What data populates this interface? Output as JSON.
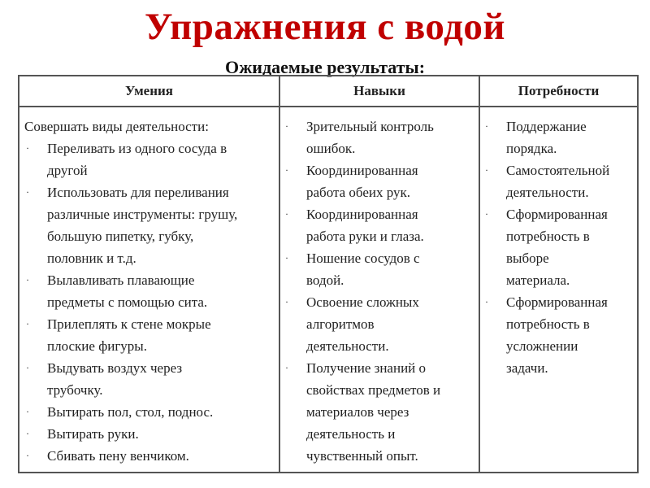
{
  "title": "Упражнения с водой",
  "subtitle": "Ожидаемые результаты:",
  "table": {
    "headers": [
      "Умения",
      "Навыки",
      "Потребности"
    ],
    "bullet": "·",
    "columns": [
      {
        "intro": "Совершать виды деятельности:",
        "items": [
          [
            "Переливать из одного сосуда в",
            "другой"
          ],
          [
            "Использовать для переливания",
            "различные инструменты: грушу,",
            "большую пипетку, губку,",
            "половник и т.д."
          ],
          [
            "Вылавливать плавающие",
            "предметы с помощью сита."
          ],
          [
            "Прилеплять к стене мокрые",
            "плоские фигуры."
          ],
          [
            "Выдувать воздух через",
            "трубочку."
          ],
          [
            "Вытирать пол, стол, поднос."
          ],
          [
            "Вытирать руки."
          ],
          [
            "Сбивать пену венчиком."
          ]
        ]
      },
      {
        "intro": "",
        "items": [
          [
            "Зрительный контроль",
            "ошибок."
          ],
          [
            "Координированная",
            "работа обеих рук."
          ],
          [
            "Координированная",
            "работа руки и глаза."
          ],
          [
            "Ношение сосудов с",
            "водой."
          ],
          [
            "Освоение сложных",
            "алгоритмов",
            "деятельности."
          ],
          [
            "Получение знаний о",
            "свойствах предметов и",
            "материалов через",
            "деятельность и",
            "чувственный опыт."
          ]
        ]
      },
      {
        "intro": "",
        "items": [
          [
            "Поддержание",
            "порядка."
          ],
          [
            "Самостоятельной",
            "деятельности."
          ],
          [
            "Сформированная",
            "потребность в",
            "выборе",
            "материала."
          ],
          [
            "Сформированная",
            "потребность в",
            "усложнении",
            "задачи."
          ]
        ]
      }
    ]
  },
  "colors": {
    "title": "#c00000",
    "border": "#555555"
  }
}
